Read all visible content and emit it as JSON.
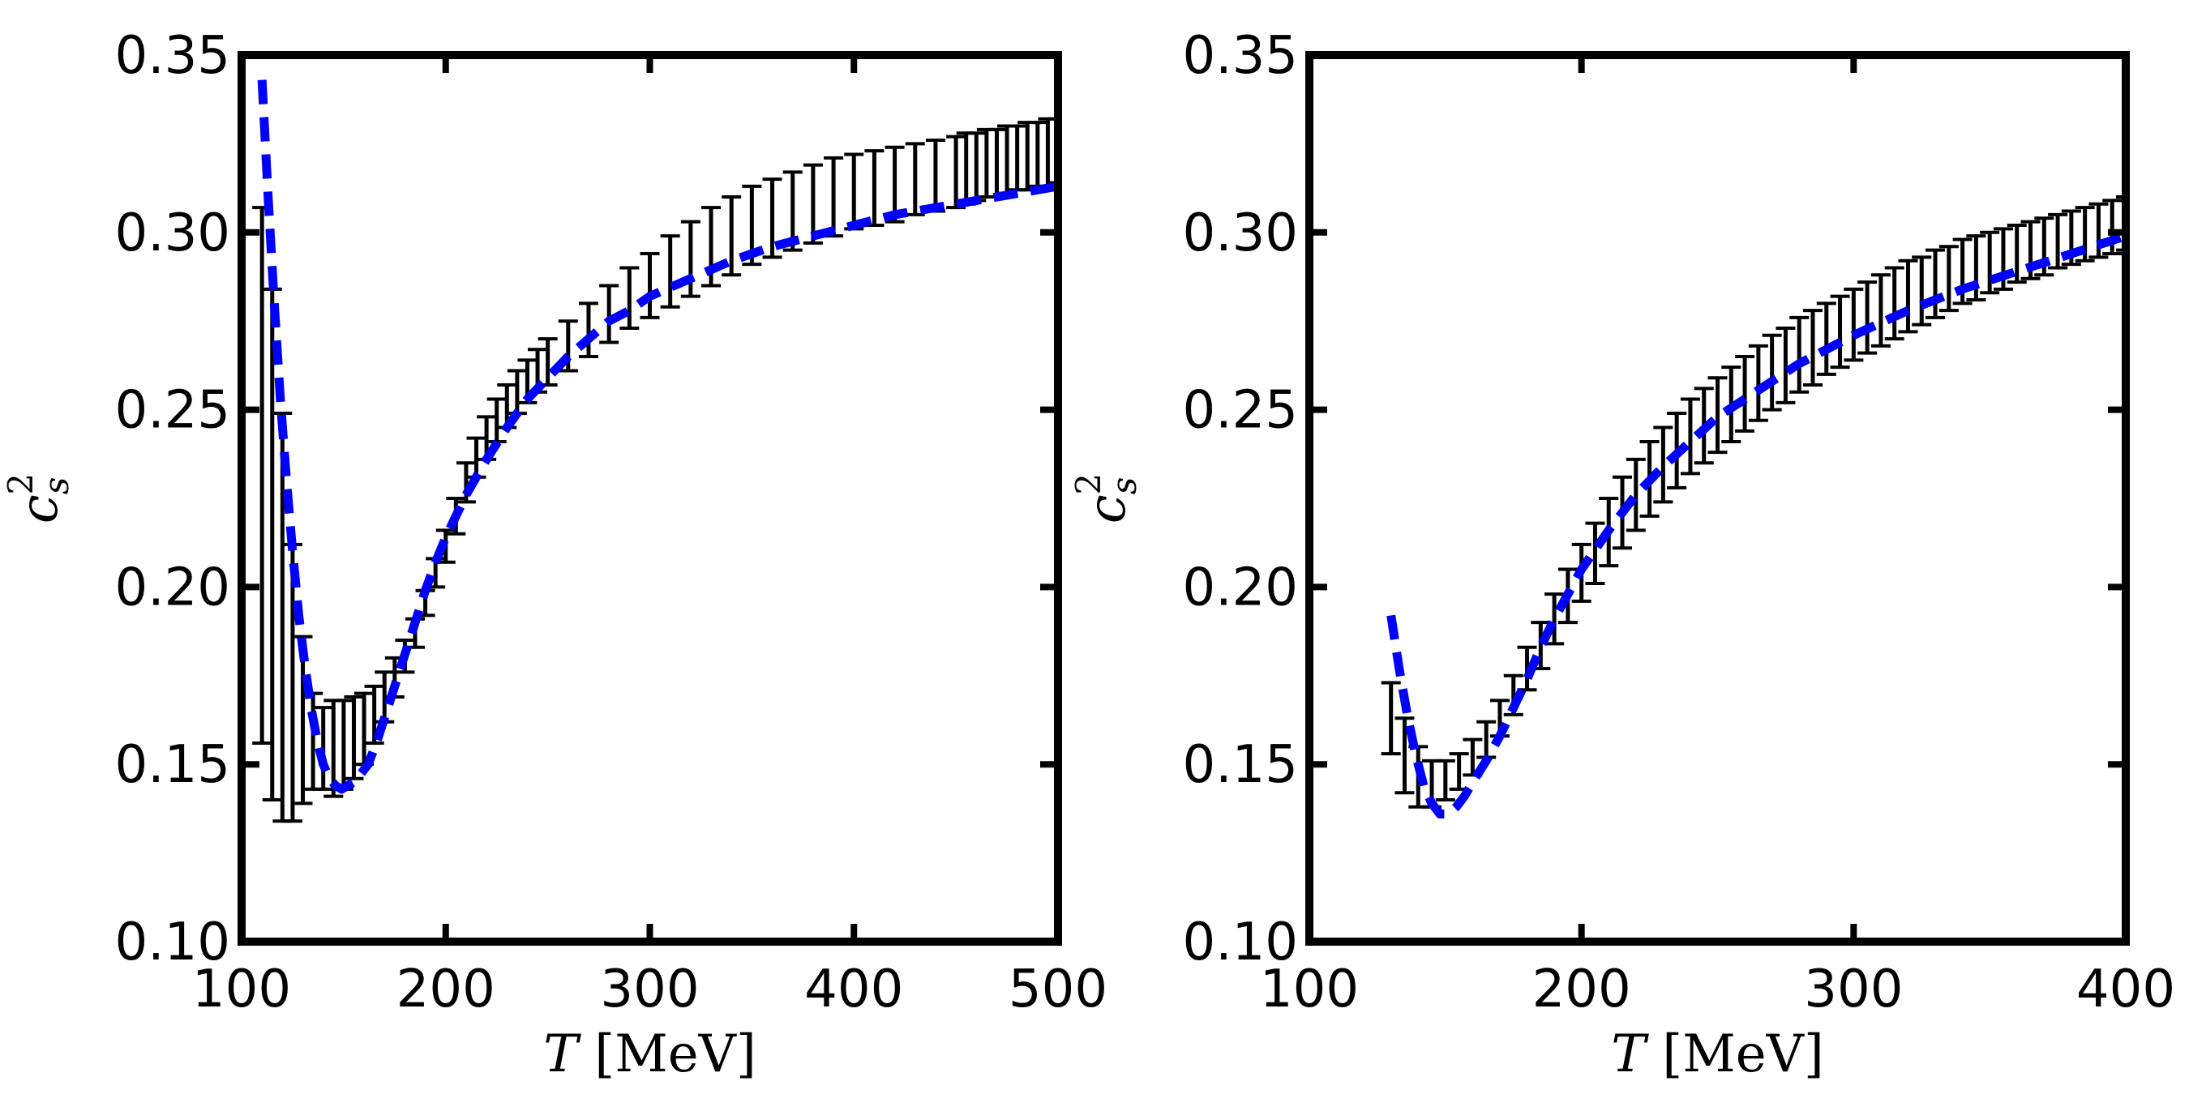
{
  "chart_data": [
    {
      "type": "line",
      "panel": "left",
      "xlabel": "T [MeV]",
      "xlabel_var": "T",
      "xlabel_unit": "[MeV]",
      "ylabel": "c_s^2",
      "ylabel_base": "c",
      "ylabel_sup": "2",
      "ylabel_sub": "s",
      "xlim": [
        100,
        500
      ],
      "ylim": [
        0.1,
        0.35
      ],
      "xticks": [
        100,
        200,
        300,
        400,
        500
      ],
      "xtick_labels": [
        "100",
        "200",
        "300",
        "400",
        "500"
      ],
      "yticks": [
        0.1,
        0.15,
        0.2,
        0.25,
        0.3,
        0.35
      ],
      "ytick_labels": [
        "0.10",
        "0.15",
        "0.20",
        "0.25",
        "0.30",
        "0.35"
      ],
      "grid": false,
      "series": [
        {
          "kind": "errorbar",
          "color": "#000000",
          "x": [
            110,
            115,
            120,
            125,
            130,
            135,
            140,
            145,
            150,
            155,
            160,
            165,
            170,
            175,
            180,
            185,
            190,
            195,
            200,
            205,
            210,
            215,
            220,
            225,
            230,
            235,
            240,
            245,
            250,
            260,
            270,
            280,
            290,
            300,
            310,
            320,
            330,
            340,
            350,
            360,
            370,
            380,
            390,
            400,
            410,
            420,
            430,
            440,
            450,
            455,
            460,
            465,
            470,
            475,
            480,
            485,
            490,
            495,
            500
          ],
          "low": [
            0.156,
            0.14,
            0.134,
            0.134,
            0.139,
            0.143,
            0.143,
            0.141,
            0.143,
            0.146,
            0.15,
            0.156,
            0.162,
            0.169,
            0.176,
            0.183,
            0.192,
            0.2,
            0.207,
            0.215,
            0.224,
            0.231,
            0.236,
            0.241,
            0.245,
            0.249,
            0.252,
            0.255,
            0.257,
            0.261,
            0.265,
            0.269,
            0.273,
            0.276,
            0.279,
            0.282,
            0.285,
            0.288,
            0.291,
            0.293,
            0.295,
            0.297,
            0.299,
            0.301,
            0.302,
            0.303,
            0.305,
            0.306,
            0.307,
            0.308,
            0.309,
            0.31,
            0.31,
            0.311,
            0.312,
            0.312,
            0.313,
            0.313,
            0.314
          ],
          "high": [
            0.307,
            0.284,
            0.249,
            0.212,
            0.186,
            0.17,
            0.166,
            0.168,
            0.168,
            0.169,
            0.17,
            0.172,
            0.176,
            0.18,
            0.185,
            0.191,
            0.199,
            0.208,
            0.216,
            0.225,
            0.235,
            0.242,
            0.248,
            0.253,
            0.257,
            0.261,
            0.264,
            0.267,
            0.27,
            0.275,
            0.28,
            0.285,
            0.29,
            0.294,
            0.299,
            0.303,
            0.307,
            0.31,
            0.313,
            0.315,
            0.317,
            0.319,
            0.321,
            0.322,
            0.323,
            0.324,
            0.325,
            0.326,
            0.327,
            0.328,
            0.328,
            0.329,
            0.329,
            0.33,
            0.33,
            0.331,
            0.331,
            0.332,
            0.332
          ]
        },
        {
          "kind": "line",
          "style": "dashed",
          "color": "#0000ff",
          "x": [
            110,
            113,
            116,
            119,
            122,
            125,
            128,
            131,
            134,
            137,
            140,
            143,
            146,
            149,
            152,
            155,
            158,
            162,
            166,
            170,
            175,
            180,
            185,
            190,
            195,
            200,
            210,
            220,
            230,
            240,
            250,
            260,
            270,
            280,
            290,
            300,
            320,
            340,
            360,
            380,
            400,
            420,
            440,
            460,
            480,
            500
          ],
          "y": [
            0.343,
            0.31,
            0.28,
            0.253,
            0.23,
            0.21,
            0.192,
            0.178,
            0.166,
            0.157,
            0.15,
            0.146,
            0.144,
            0.143,
            0.144,
            0.145,
            0.147,
            0.15,
            0.156,
            0.163,
            0.172,
            0.181,
            0.19,
            0.199,
            0.207,
            0.214,
            0.226,
            0.236,
            0.245,
            0.253,
            0.259,
            0.265,
            0.27,
            0.275,
            0.278,
            0.282,
            0.287,
            0.292,
            0.296,
            0.299,
            0.302,
            0.305,
            0.307,
            0.309,
            0.311,
            0.313
          ]
        }
      ]
    },
    {
      "type": "line",
      "panel": "right",
      "xlabel": "T [MeV]",
      "xlabel_var": "T",
      "xlabel_unit": "[MeV]",
      "ylabel": "c_s^2",
      "ylabel_base": "c",
      "ylabel_sup": "2",
      "ylabel_sub": "s",
      "xlim": [
        100,
        400
      ],
      "ylim": [
        0.1,
        0.35
      ],
      "xticks": [
        100,
        200,
        300,
        400
      ],
      "xtick_labels": [
        "100",
        "200",
        "300",
        "400"
      ],
      "yticks": [
        0.1,
        0.15,
        0.2,
        0.25,
        0.3,
        0.35
      ],
      "ytick_labels": [
        "0.10",
        "0.15",
        "0.20",
        "0.25",
        "0.30",
        "0.35"
      ],
      "grid": false,
      "series": [
        {
          "kind": "errorbar",
          "color": "#000000",
          "x": [
            130,
            135,
            140,
            145,
            150,
            155,
            160,
            165,
            170,
            175,
            180,
            185,
            190,
            195,
            200,
            205,
            210,
            215,
            220,
            225,
            230,
            235,
            240,
            245,
            250,
            255,
            260,
            265,
            270,
            275,
            280,
            285,
            290,
            295,
            300,
            305,
            310,
            315,
            320,
            325,
            330,
            335,
            340,
            345,
            350,
            355,
            360,
            365,
            370,
            375,
            380,
            385,
            390,
            395,
            400
          ],
          "low": [
            0.153,
            0.142,
            0.138,
            0.138,
            0.14,
            0.143,
            0.147,
            0.152,
            0.158,
            0.164,
            0.171,
            0.177,
            0.184,
            0.19,
            0.196,
            0.201,
            0.206,
            0.211,
            0.216,
            0.22,
            0.224,
            0.228,
            0.232,
            0.235,
            0.238,
            0.241,
            0.244,
            0.247,
            0.25,
            0.252,
            0.255,
            0.257,
            0.26,
            0.262,
            0.264,
            0.266,
            0.268,
            0.27,
            0.272,
            0.274,
            0.276,
            0.278,
            0.28,
            0.281,
            0.283,
            0.284,
            0.286,
            0.287,
            0.288,
            0.29,
            0.291,
            0.292,
            0.293,
            0.294,
            0.295
          ],
          "high": [
            0.173,
            0.163,
            0.155,
            0.151,
            0.151,
            0.153,
            0.157,
            0.162,
            0.168,
            0.175,
            0.183,
            0.19,
            0.198,
            0.205,
            0.212,
            0.218,
            0.225,
            0.231,
            0.236,
            0.241,
            0.245,
            0.249,
            0.253,
            0.256,
            0.259,
            0.262,
            0.265,
            0.268,
            0.271,
            0.273,
            0.276,
            0.278,
            0.28,
            0.282,
            0.284,
            0.286,
            0.288,
            0.29,
            0.292,
            0.293,
            0.295,
            0.296,
            0.298,
            0.299,
            0.3,
            0.301,
            0.302,
            0.303,
            0.304,
            0.305,
            0.306,
            0.307,
            0.308,
            0.309,
            0.31
          ]
        },
        {
          "kind": "line",
          "style": "dashed",
          "color": "#0000ff",
          "x": [
            130,
            133,
            136,
            139,
            142,
            145,
            148,
            151,
            154,
            157,
            160,
            165,
            170,
            175,
            180,
            185,
            190,
            195,
            200,
            210,
            220,
            230,
            240,
            250,
            260,
            270,
            280,
            290,
            300,
            320,
            340,
            360,
            380,
            400
          ],
          "y": [
            0.192,
            0.177,
            0.164,
            0.153,
            0.144,
            0.139,
            0.136,
            0.136,
            0.138,
            0.141,
            0.145,
            0.151,
            0.158,
            0.166,
            0.174,
            0.183,
            0.191,
            0.198,
            0.205,
            0.216,
            0.226,
            0.234,
            0.241,
            0.248,
            0.253,
            0.258,
            0.263,
            0.267,
            0.271,
            0.278,
            0.284,
            0.289,
            0.294,
            0.299
          ]
        }
      ]
    }
  ]
}
